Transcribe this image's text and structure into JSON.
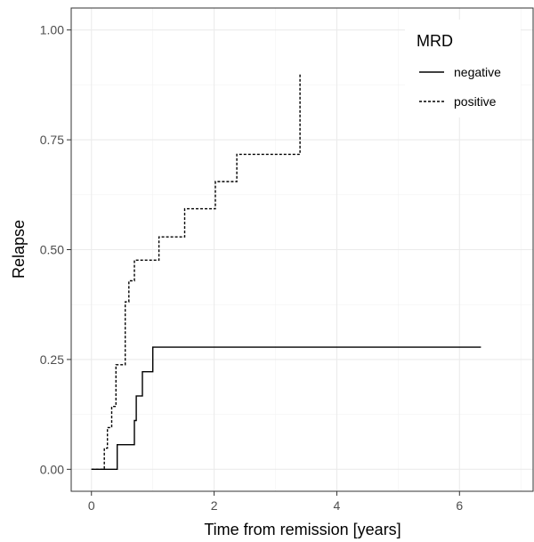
{
  "chart_data": {
    "type": "line",
    "step": true,
    "title": "",
    "xlabel": "Time from remission [years]",
    "ylabel": "Relapse",
    "xlim": [
      -0.33,
      7.2
    ],
    "ylim": [
      -0.05,
      1.05
    ],
    "x_ticks": [
      0,
      2,
      4,
      6
    ],
    "y_ticks": [
      0,
      0.25,
      0.5,
      0.75,
      1.0
    ],
    "x_tick_labels": [
      "0",
      "2",
      "4",
      "6"
    ],
    "y_tick_labels": [
      "0.00",
      "0.25",
      "0.50",
      "0.75",
      "1.00"
    ],
    "grid": true,
    "legend": {
      "title": "MRD",
      "position": "top-right"
    },
    "series": [
      {
        "name": "negative",
        "line_style": "solid",
        "color": "#000000",
        "x": [
          0,
          0.42,
          0.7,
          0.73,
          0.83,
          1.0,
          6.35
        ],
        "y": [
          0,
          0.056,
          0.111,
          0.167,
          0.222,
          0.278,
          0.278
        ]
      },
      {
        "name": "positive",
        "line_style": "dotted",
        "color": "#000000",
        "x": [
          0,
          0.21,
          0.26,
          0.33,
          0.4,
          0.55,
          0.61,
          0.7,
          0.82,
          1.1,
          1.52,
          2.02,
          2.37,
          3.4,
          3.4
        ],
        "y": [
          0,
          0.048,
          0.095,
          0.143,
          0.238,
          0.381,
          0.429,
          0.476,
          0.476,
          0.529,
          0.593,
          0.655,
          0.717,
          0.717,
          0.9
        ]
      }
    ]
  }
}
